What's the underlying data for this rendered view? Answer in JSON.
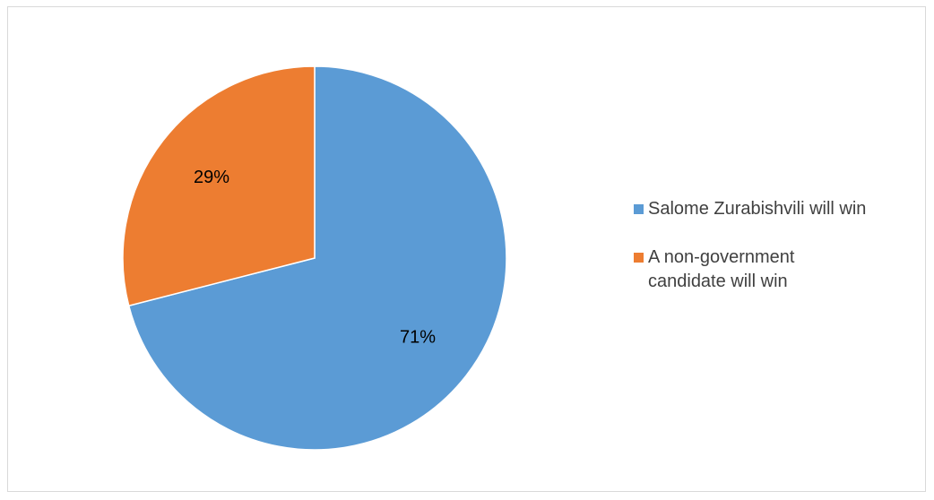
{
  "chart_data": {
    "type": "pie",
    "title": "",
    "series": [
      {
        "values": [
          71,
          29
        ],
        "labels": [
          "71%",
          "29%"
        ],
        "categories": [
          "Salome Zurabishvili will win",
          "A non-government candidate will win"
        ],
        "colors": [
          "#5B9BD5",
          "#ED7D31"
        ]
      }
    ],
    "legend_position": "right",
    "start_angle": "12 o'clock, clockwise"
  }
}
